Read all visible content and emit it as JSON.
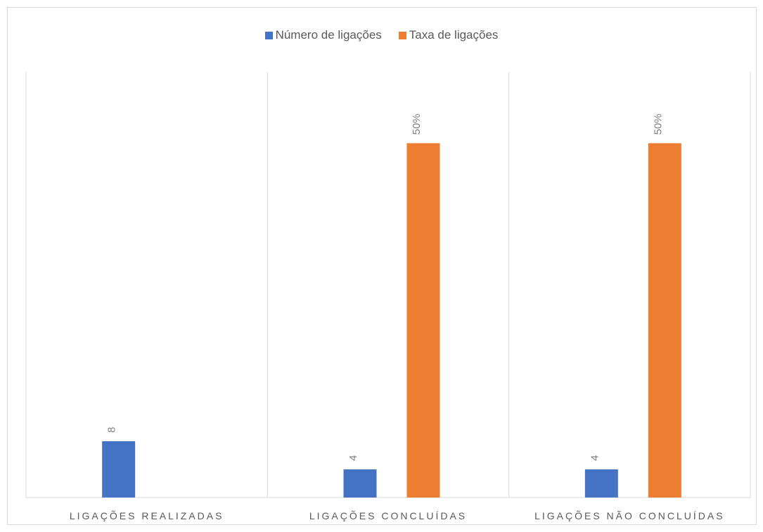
{
  "chart_data": {
    "type": "bar",
    "categories": [
      "LIGAÇÕES REALIZADAS",
      "LIGAÇÕES  CONCLUÍDAS",
      "LIGAÇÕES NÃO CONCLUÍDAS"
    ],
    "series": [
      {
        "name": "Número de ligações",
        "values": [
          8,
          4,
          4
        ],
        "labels": [
          "8",
          "4",
          "4"
        ],
        "color": "#4472c4"
      },
      {
        "name": "Taxa de ligações",
        "values": [
          null,
          50,
          50
        ],
        "labels": [
          null,
          "50%",
          "50%"
        ],
        "color": "#ed7d31"
      }
    ],
    "grid": false,
    "category_separators": true,
    "legend_position": "top",
    "data_labels_rotated": true
  }
}
